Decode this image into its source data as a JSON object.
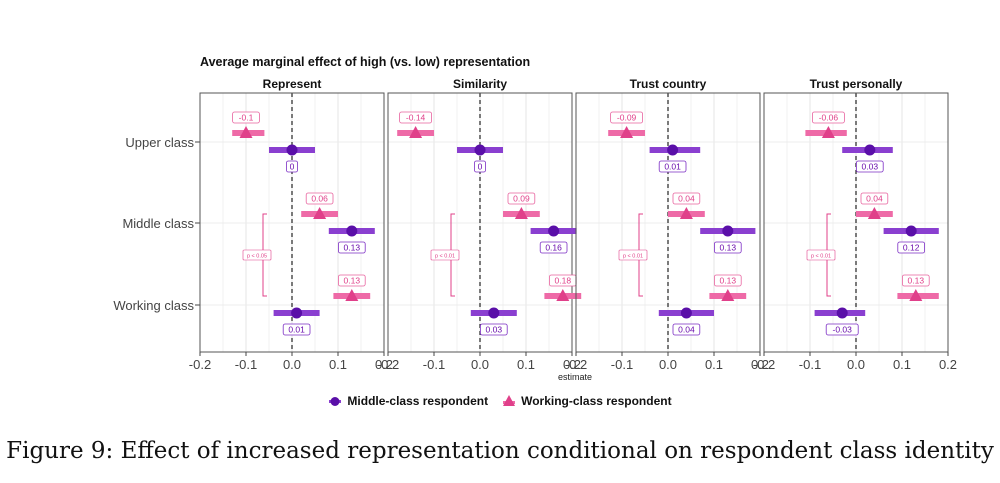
{
  "chart_data": {
    "type": "scatter",
    "title": "Average marginal effect of high (vs. low) representation",
    "xlabel": "estimate",
    "xlim": [
      -0.2,
      0.2
    ],
    "xticks": [
      "-0.2",
      "-0.1",
      "0.0",
      "0.1",
      "0.2"
    ],
    "categories": [
      "Upper class",
      "Middle class",
      "Working class"
    ],
    "significance_label": "p < 0.05",
    "legend_position": "bottom",
    "series": [
      {
        "name": "Middle-class respondent",
        "color": "#6a0dad",
        "marker": "circle"
      },
      {
        "name": "Working-class respondent",
        "color": "#e0408a",
        "marker": "triangle"
      }
    ],
    "panels": [
      {
        "title": "Represent",
        "sig_label": "p < 0.05",
        "points": [
          {
            "category": "Upper class",
            "series": 1,
            "estimate": -0.1,
            "lo": -0.13,
            "hi": -0.06,
            "label": "-0.1"
          },
          {
            "category": "Upper class",
            "series": 0,
            "estimate": 0.0,
            "lo": -0.05,
            "hi": 0.05,
            "label": "0"
          },
          {
            "category": "Middle class",
            "series": 1,
            "estimate": 0.06,
            "lo": 0.02,
            "hi": 0.1,
            "label": "0.06"
          },
          {
            "category": "Middle class",
            "series": 0,
            "estimate": 0.13,
            "lo": 0.08,
            "hi": 0.18,
            "label": "0.13"
          },
          {
            "category": "Working class",
            "series": 1,
            "estimate": 0.13,
            "lo": 0.09,
            "hi": 0.17,
            "label": "0.13"
          },
          {
            "category": "Working class",
            "series": 0,
            "estimate": 0.01,
            "lo": -0.04,
            "hi": 0.06,
            "label": "0.01"
          }
        ]
      },
      {
        "title": "Similarity",
        "sig_label": "p < 0.01",
        "points": [
          {
            "category": "Upper class",
            "series": 1,
            "estimate": -0.14,
            "lo": -0.18,
            "hi": -0.1,
            "label": "-0.14"
          },
          {
            "category": "Upper class",
            "series": 0,
            "estimate": 0.0,
            "lo": -0.05,
            "hi": 0.05,
            "label": "0"
          },
          {
            "category": "Middle class",
            "series": 1,
            "estimate": 0.09,
            "lo": 0.05,
            "hi": 0.13,
            "label": "0.09"
          },
          {
            "category": "Middle class",
            "series": 0,
            "estimate": 0.16,
            "lo": 0.11,
            "hi": 0.21,
            "label": "0.16"
          },
          {
            "category": "Working class",
            "series": 1,
            "estimate": 0.18,
            "lo": 0.14,
            "hi": 0.22,
            "label": "0.18"
          },
          {
            "category": "Working class",
            "series": 0,
            "estimate": 0.03,
            "lo": -0.02,
            "hi": 0.08,
            "label": "0.03"
          }
        ]
      },
      {
        "title": "Trust country",
        "sig_label": "p < 0.01",
        "points": [
          {
            "category": "Upper class",
            "series": 1,
            "estimate": -0.09,
            "lo": -0.13,
            "hi": -0.05,
            "label": "-0.09"
          },
          {
            "category": "Upper class",
            "series": 0,
            "estimate": 0.01,
            "lo": -0.04,
            "hi": 0.07,
            "label": "0.01"
          },
          {
            "category": "Middle class",
            "series": 1,
            "estimate": 0.04,
            "lo": 0.0,
            "hi": 0.08,
            "label": "0.04"
          },
          {
            "category": "Middle class",
            "series": 0,
            "estimate": 0.13,
            "lo": 0.07,
            "hi": 0.19,
            "label": "0.13"
          },
          {
            "category": "Working class",
            "series": 1,
            "estimate": 0.13,
            "lo": 0.09,
            "hi": 0.17,
            "label": "0.13"
          },
          {
            "category": "Working class",
            "series": 0,
            "estimate": 0.04,
            "lo": -0.02,
            "hi": 0.1,
            "label": "0.04"
          }
        ]
      },
      {
        "title": "Trust personally",
        "sig_label": "p < 0.01",
        "points": [
          {
            "category": "Upper class",
            "series": 1,
            "estimate": -0.06,
            "lo": -0.11,
            "hi": -0.02,
            "label": "-0.06"
          },
          {
            "category": "Upper class",
            "series": 0,
            "estimate": 0.03,
            "lo": -0.03,
            "hi": 0.08,
            "label": "0.03"
          },
          {
            "category": "Middle class",
            "series": 1,
            "estimate": 0.04,
            "lo": 0.0,
            "hi": 0.08,
            "label": "0.04"
          },
          {
            "category": "Middle class",
            "series": 0,
            "estimate": 0.12,
            "lo": 0.06,
            "hi": 0.18,
            "label": "0.12"
          },
          {
            "category": "Working class",
            "series": 1,
            "estimate": 0.13,
            "lo": 0.09,
            "hi": 0.18,
            "label": "0.13"
          },
          {
            "category": "Working class",
            "series": 0,
            "estimate": -0.03,
            "lo": -0.09,
            "hi": 0.02,
            "label": "-0.03"
          }
        ]
      }
    ]
  },
  "caption": "Figure 9: Effect of increased representation conditional on respondent class identity"
}
